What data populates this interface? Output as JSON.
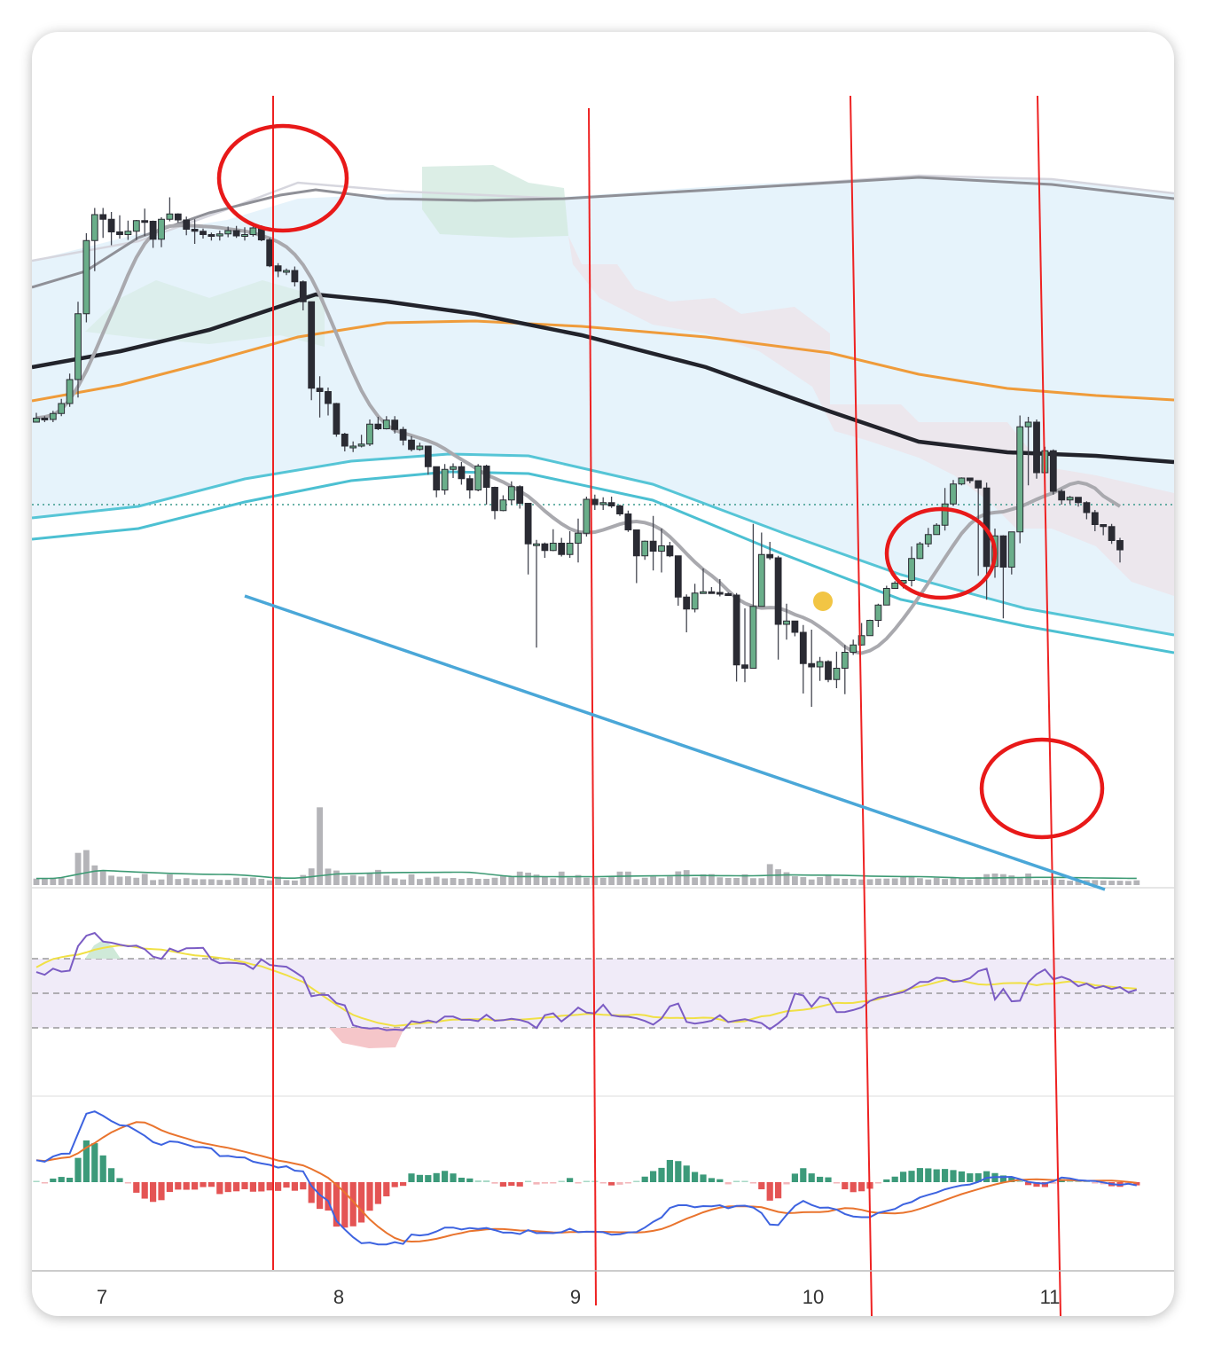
{
  "chart_data": {
    "type": "candlestick",
    "title": "",
    "xlabel": "",
    "ylabel": "",
    "x_ticks": [
      "7",
      "8",
      "9",
      "10",
      "11"
    ],
    "price_range": [
      0,
      100
    ],
    "panels": [
      "price",
      "volume",
      "rsi",
      "macd"
    ],
    "grid": false,
    "candles": [
      [
        12.0,
        12.6,
        13.4,
        12.0
      ],
      [
        12.6,
        12.4,
        12.9,
        12.0
      ],
      [
        12.4,
        13.3,
        13.7,
        12.0
      ],
      [
        13.3,
        14.8,
        15.5,
        12.9
      ],
      [
        14.8,
        18.4,
        19.3,
        14.3
      ],
      [
        18.4,
        28.3,
        30.1,
        15.7
      ],
      [
        28.3,
        39.3,
        40.4,
        27.0
      ],
      [
        39.3,
        43.2,
        44.2,
        34.7
      ],
      [
        43.2,
        42.5,
        44.2,
        39.7
      ],
      [
        42.5,
        40.6,
        43.6,
        38.6
      ],
      [
        40.6,
        40.2,
        43.1,
        39.6
      ],
      [
        40.2,
        40.7,
        42.3,
        39.4
      ],
      [
        40.7,
        42.3,
        42.4,
        39.4
      ],
      [
        42.3,
        42.2,
        44.1,
        40.0
      ],
      [
        42.2,
        39.5,
        42.3,
        38.2
      ],
      [
        39.5,
        42.5,
        42.8,
        38.3
      ],
      [
        42.5,
        43.3,
        45.8,
        42.2
      ],
      [
        43.3,
        42.4,
        43.4,
        42.0
      ],
      [
        42.4,
        41.0,
        42.9,
        40.1
      ],
      [
        41.0,
        40.7,
        42.5,
        38.8
      ],
      [
        40.7,
        40.2,
        41.1,
        39.6
      ],
      [
        40.2,
        40.0,
        40.5,
        39.3
      ],
      [
        40.0,
        40.3,
        40.8,
        39.3
      ],
      [
        40.3,
        40.8,
        41.4,
        39.8
      ],
      [
        40.8,
        40.0,
        41.5,
        39.7
      ],
      [
        40.0,
        40.2,
        41.3,
        39.3
      ],
      [
        40.2,
        41.2,
        41.4,
        39.9
      ],
      [
        41.2,
        39.4,
        41.6,
        39.2
      ],
      [
        39.4,
        35.5,
        39.7,
        35.3
      ],
      [
        35.5,
        34.7,
        35.9,
        33.8
      ],
      [
        34.7,
        34.8,
        35.1,
        34.1
      ],
      [
        34.8,
        33.1,
        35.4,
        32.4
      ],
      [
        33.1,
        30.1,
        33.3,
        28.8
      ],
      [
        30.1,
        17.1,
        29.3,
        15.3
      ],
      [
        17.1,
        16.6,
        18.9,
        12.7
      ],
      [
        16.6,
        14.8,
        17.2,
        13.0
      ],
      [
        14.8,
        10.2,
        14.9,
        9.8
      ],
      [
        10.2,
        8.4,
        10.4,
        7.6
      ],
      [
        8.4,
        8.4,
        9.1,
        7.5
      ],
      [
        8.4,
        8.7,
        10.1,
        8.2
      ],
      [
        8.7,
        11.7,
        12.4,
        8.4
      ],
      [
        11.7,
        11.0,
        12.8,
        10.8
      ],
      [
        11.0,
        12.3,
        12.9,
        10.9
      ],
      [
        12.3,
        10.9,
        12.9,
        10.3
      ],
      [
        10.9,
        9.3,
        11.3,
        8.5
      ],
      [
        9.3,
        7.9,
        9.9,
        7.6
      ],
      [
        7.9,
        8.4,
        8.9,
        7.7
      ],
      [
        8.4,
        5.3,
        8.3,
        4.1
      ],
      [
        5.3,
        1.8,
        5.1,
        0.7
      ],
      [
        1.8,
        4.9,
        5.7,
        1.1
      ],
      [
        4.9,
        5.3,
        5.8,
        3.6
      ],
      [
        5.3,
        3.5,
        6.0,
        2.6
      ],
      [
        3.5,
        1.8,
        4.0,
        0.5
      ],
      [
        1.8,
        5.4,
        5.7,
        1.6
      ],
      [
        5.4,
        2.2,
        5.6,
        -0.4
      ],
      [
        2.2,
        -1.3,
        2.3,
        -2.6
      ],
      [
        -1.3,
        0.3,
        1.0,
        -1.4
      ],
      [
        0.3,
        2.3,
        3.1,
        -0.4
      ],
      [
        2.3,
        -0.2,
        2.5,
        -1.0
      ],
      [
        -0.2,
        -6.3,
        -0.2,
        -10.9
      ],
      [
        -6.3,
        -6.3,
        -5.7,
        -21.9
      ],
      [
        -6.3,
        -7.3,
        -6.1,
        -8.4
      ],
      [
        -7.3,
        -6.2,
        -4.1,
        -7.4
      ],
      [
        -6.2,
        -7.9,
        -5.4,
        -8.2
      ],
      [
        -7.9,
        -6.2,
        -4.4,
        -8.4
      ],
      [
        -6.2,
        -4.7,
        -2.5,
        -9.1
      ],
      [
        -4.7,
        0.4,
        0.8,
        -5.2
      ],
      [
        0.4,
        -0.4,
        1.1,
        -1.2
      ],
      [
        -0.4,
        -0.1,
        0.7,
        -1.2
      ],
      [
        -0.1,
        -0.6,
        0.8,
        -0.9
      ],
      [
        -0.6,
        -1.8,
        -0.4,
        -2.1
      ],
      [
        -1.8,
        -4.2,
        -1.3,
        -4.5
      ],
      [
        -4.2,
        -8.1,
        -4.3,
        -12.2
      ],
      [
        -8.1,
        -5.9,
        -5.8,
        -8.7
      ],
      [
        -5.9,
        -7.4,
        -2.1,
        -10.3
      ],
      [
        -7.4,
        -6.6,
        -4.0,
        -10.6
      ],
      [
        -6.6,
        -8.1,
        -6.0,
        -8.3
      ],
      [
        -8.1,
        -14.3,
        -8.1,
        -15.6
      ],
      [
        -14.3,
        -16.1,
        -13.9,
        -19.6
      ],
      [
        -16.1,
        -13.7,
        -12.3,
        -16.6
      ],
      [
        -13.7,
        -13.5,
        -10.0,
        -13.6
      ],
      [
        -13.5,
        -13.6,
        -12.8,
        -13.7
      ],
      [
        -13.6,
        -13.8,
        -11.6,
        -14.2
      ],
      [
        -13.8,
        -14.0,
        -13.6,
        -14.1
      ],
      [
        -14.0,
        -24.5,
        -13.7,
        -27.0
      ],
      [
        -24.5,
        -25.0,
        -16.0,
        -27.1
      ],
      [
        -25.0,
        -15.7,
        -3.3,
        -16.7
      ],
      [
        -15.7,
        -7.9,
        -4.6,
        -10.2
      ],
      [
        -7.9,
        -8.4,
        -6.0,
        -8.7
      ],
      [
        -8.4,
        -18.4,
        -8.1,
        -23.7
      ],
      [
        -18.4,
        -17.9,
        -15.3,
        -20.7
      ],
      [
        -17.9,
        -19.6,
        -17.9,
        -20.2
      ],
      [
        -19.6,
        -24.3,
        -18.5,
        -28.8
      ],
      [
        -24.3,
        -24.8,
        -19.2,
        -30.8
      ],
      [
        -24.8,
        -24.0,
        -23.3,
        -26.9
      ],
      [
        -24.0,
        -26.7,
        -23.8,
        -27.1
      ],
      [
        -26.7,
        -25.0,
        -22.5,
        -28.0
      ],
      [
        -25.0,
        -22.6,
        -21.5,
        -28.9
      ],
      [
        -22.6,
        -21.5,
        -20.7,
        -23.0
      ],
      [
        -21.5,
        -20.1,
        -18.2,
        -21.6
      ],
      [
        -20.1,
        -17.8,
        -17.7,
        -18.3
      ],
      [
        -17.8,
        -15.5,
        -15.3,
        -18.8
      ],
      [
        -15.5,
        -13.0,
        -12.6,
        -15.5
      ],
      [
        -13.0,
        -12.2,
        -11.9,
        -13.0
      ],
      [
        -12.2,
        -11.8,
        -11.8,
        -13.0
      ],
      [
        -11.8,
        -8.5,
        -6.7,
        -12.7
      ],
      [
        -8.5,
        -6.3,
        -6.0,
        -8.6
      ],
      [
        -6.3,
        -4.9,
        -3.9,
        -6.8
      ],
      [
        -4.9,
        -3.5,
        -3.2,
        -4.3
      ],
      [
        -3.5,
        -0.3,
        2.1,
        -4.3
      ],
      [
        -0.3,
        2.7,
        3.3,
        -0.6
      ],
      [
        2.7,
        3.6,
        3.7,
        2.5
      ],
      [
        3.6,
        3.2,
        3.5,
        2.8
      ],
      [
        3.2,
        2.1,
        3.0,
        -11.1
      ],
      [
        2.1,
        -9.7,
        2.9,
        -14.7
      ],
      [
        -9.7,
        -5.1,
        -4.0,
        -11.4
      ],
      [
        -5.1,
        -9.8,
        -5.0,
        -17.5
      ],
      [
        -9.8,
        -4.5,
        -4.8,
        -10.9
      ],
      [
        -4.5,
        11.3,
        13.0,
        -6.2
      ],
      [
        11.3,
        12.0,
        12.8,
        2.5
      ],
      [
        12.0,
        4.4,
        12.4,
        3.5
      ],
      [
        4.4,
        7.7,
        8.3,
        1.2
      ],
      [
        7.7,
        1.6,
        7.9,
        1.1
      ],
      [
        1.6,
        0.3,
        1.9,
        -0.4
      ],
      [
        0.3,
        0.7,
        0.9,
        -0.3
      ],
      [
        0.7,
        -0.1,
        0.6,
        -0.7
      ],
      [
        -0.1,
        -1.6,
        0.1,
        -2.6
      ],
      [
        -1.6,
        -3.4,
        -1.2,
        -4.4
      ],
      [
        -3.4,
        -3.7,
        -3.5,
        -5.0
      ],
      [
        -3.7,
        -5.8,
        -3.3,
        -6.3
      ],
      [
        -5.8,
        -7.2,
        -5.4,
        -9.1
      ]
    ],
    "volume": [
      2.2,
      2.2,
      2.6,
      2.6,
      2.0,
      14.3,
      15.6,
      8.4,
      5.6,
      3.6,
      3.1,
      3.3,
      2.6,
      4.4,
      1.5,
      1.8,
      4.2,
      2.0,
      2.4,
      1.9,
      1.9,
      1.9,
      1.6,
      1.6,
      2.6,
      2.6,
      2.7,
      2.1,
      1.4,
      3.1,
      1.5,
      1.3,
      3.9,
      7.0,
      35.7,
      6.9,
      6.0,
      3.4,
      3.9,
      3.2,
      5.0,
      6.3,
      3.6,
      2.3,
      1.8,
      4.2,
      2.0,
      2.6,
      3.1,
      2.3,
      2.5,
      2.1,
      2.5,
      2.1,
      2.1,
      2.6,
      3.5,
      3.3,
      5.5,
      5.0,
      4.1,
      3.0,
      2.3,
      5.5,
      2.6,
      3.9,
      2.6,
      2.8,
      2.5,
      3.4,
      5.5,
      5.5,
      1.9,
      2.6,
      3.2,
      2.4,
      3.2,
      5.6,
      6.2,
      2.7,
      4.2,
      4.3,
      2.8,
      2.5,
      2.5,
      4.2,
      2.4,
      2.4,
      9.0,
      6.6,
      5.2,
      3.3,
      2.9,
      1.8,
      2.9,
      3.6,
      2.3,
      2.1,
      2.1,
      1.8,
      1.9,
      2.2,
      2.2,
      2.3,
      3.3,
      2.9,
      2.4,
      1.8,
      2.6,
      2.0,
      2.7,
      2.4,
      1.7,
      2.9,
      4.3,
      4.6,
      4.3,
      3.7,
      2.4,
      4.6,
      1.6,
      1.6,
      2.3,
      1.7,
      1.2,
      1.3,
      1.5,
      1.5,
      1.3,
      1.2,
      1.2,
      1.1,
      1.4
    ],
    "rsi": [
      50.9,
      48.9,
      53.4,
      51.2,
      51.9,
      69.5,
      77.0,
      79.0,
      72.8,
      72.0,
      70.6,
      69.4,
      69.9,
      67.3,
      62.0,
      60.4,
      67.8,
      65.5,
      68.0,
      68.1,
      68.3,
      60.0,
      57.2,
      57.6,
      57.3,
      56.6,
      53.1,
      60.0,
      56.0,
      55.2,
      54.7,
      51.0,
      47.0,
      33.5,
      34.6,
      34.4,
      28.6,
      27.0,
      12.7,
      11.0,
      10.3,
      10.7,
      9.2,
      9.6,
      9.2,
      15.6,
      14.6,
      16.2,
      14.8,
      19.0,
      18.9,
      16.6,
      16.6,
      15.7,
      20.2,
      15.9,
      16.4,
      17.3,
      16.5,
      14.8,
      10.7,
      19.9,
      21.3,
      15.4,
      20.0,
      25.4,
      21.8,
      21.2,
      27.4,
      19.9,
      18.9,
      18.8,
      17.7,
      15.8,
      13.1,
      17.6,
      26.3,
      28.3,
      15.1,
      13.9,
      14.7,
      15.9,
      19.9,
      15.0,
      16.1,
      17.0,
      15.6,
      14.2,
      9.9,
      14.1,
      19.1,
      35.5,
      34.1,
      26.0,
      33.1,
      31.7,
      22.1,
      22.2,
      23.6,
      25.5,
      30.1,
      32.6,
      33.7,
      35.1,
      36.5,
      39.9,
      43.8,
      43.9,
      46.8,
      46.4,
      43.8,
      44.6,
      46.5,
      51.5,
      53.3,
      31.2,
      38.7,
      29.9,
      30.3,
      43.6,
      49.4,
      52.8,
      45.7,
      47.5,
      45.3,
      40.7,
      42.6,
      39.3,
      40.8,
      38.7,
      40.1,
      36.4,
      38.2
    ],
    "macd": [
      9.5,
      8.9,
      11.1,
      12.3,
      12.4,
      21.1,
      29.7,
      30.7,
      28.8,
      26.5,
      24.7,
      24.4,
      22.3,
      20.1,
      17.4,
      16.2,
      17.7,
      17.4,
      16.3,
      15.2,
      15.2,
      14.6,
      11.3,
      11.4,
      10.8,
      10.7,
      8.9,
      8.1,
      7.5,
      6.3,
      6.9,
      5.0,
      4.7,
      -1.6,
      -5.5,
      -8.1,
      -16.8,
      -20.5,
      -23.9,
      -26.5,
      -26.2,
      -27.0,
      -27.0,
      -26.0,
      -26.8,
      -22.7,
      -23.1,
      -22.7,
      -21.4,
      -19.7,
      -19.7,
      -20.5,
      -19.9,
      -20.3,
      -19.9,
      -20.8,
      -21.9,
      -21.9,
      -22.5,
      -20.8,
      -22.1,
      -22.0,
      -22.1,
      -21.7,
      -20.2,
      -21.7,
      -21.5,
      -21.5,
      -21.7,
      -22.8,
      -22.6,
      -21.8,
      -21.6,
      -19.7,
      -17.2,
      -15.3,
      -11.2,
      -10.0,
      -10.0,
      -10.9,
      -10.4,
      -10.5,
      -10.0,
      -11.3,
      -10.3,
      -10.2,
      -11.0,
      -13.4,
      -18.4,
      -18.6,
      -14.2,
      -10.3,
      -8.1,
      -9.9,
      -11.1,
      -11.0,
      -11.9,
      -13.8,
      -14.9,
      -15.2,
      -15.2,
      -13.3,
      -12.5,
      -11.6,
      -9.6,
      -8.6,
      -6.6,
      -5.5,
      -4.5,
      -3.1,
      -2.2,
      -1.4,
      -1.0,
      0.1,
      1.9,
      2.2,
      2.2,
      2.3,
      1.3,
      0.1,
      -0.4,
      -0.6,
      0.4,
      2.0,
      1.6,
      0.9,
      0.6,
      0.5,
      -0.1,
      -0.8,
      -1.2,
      -0.7,
      -1.4
    ]
  }
}
